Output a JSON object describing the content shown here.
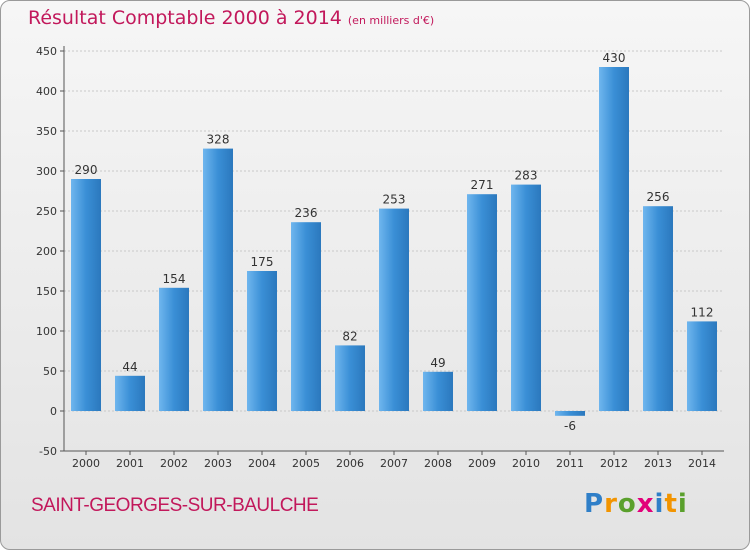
{
  "chart_data": {
    "type": "bar",
    "title": "Résultat Comptable 2000 à 2014",
    "subtitle": "(en milliers d'€)",
    "categories": [
      "2000",
      "2001",
      "2002",
      "2003",
      "2004",
      "2005",
      "2006",
      "2007",
      "2008",
      "2009",
      "2010",
      "2011",
      "2012",
      "2013",
      "2014"
    ],
    "values": [
      290,
      44,
      154,
      328,
      175,
      236,
      82,
      253,
      49,
      271,
      283,
      -6,
      430,
      256,
      112
    ],
    "ylim": [
      -50,
      450
    ],
    "yticks": [
      -50,
      0,
      50,
      100,
      150,
      200,
      250,
      300,
      350,
      400,
      450
    ],
    "grid": true,
    "bar_color": "#3a8fd6"
  },
  "footer": {
    "commune": "SAINT-GEORGES-SUR-BAULCHE",
    "logo_letters": [
      "P",
      "r",
      "o",
      "x",
      "i",
      "t",
      "i"
    ],
    "logo_colors": [
      "#2f7fc8",
      "#f29400",
      "#5aa02c",
      "#e2007a",
      "#2f7fc8",
      "#f29400",
      "#5aa02c"
    ]
  }
}
